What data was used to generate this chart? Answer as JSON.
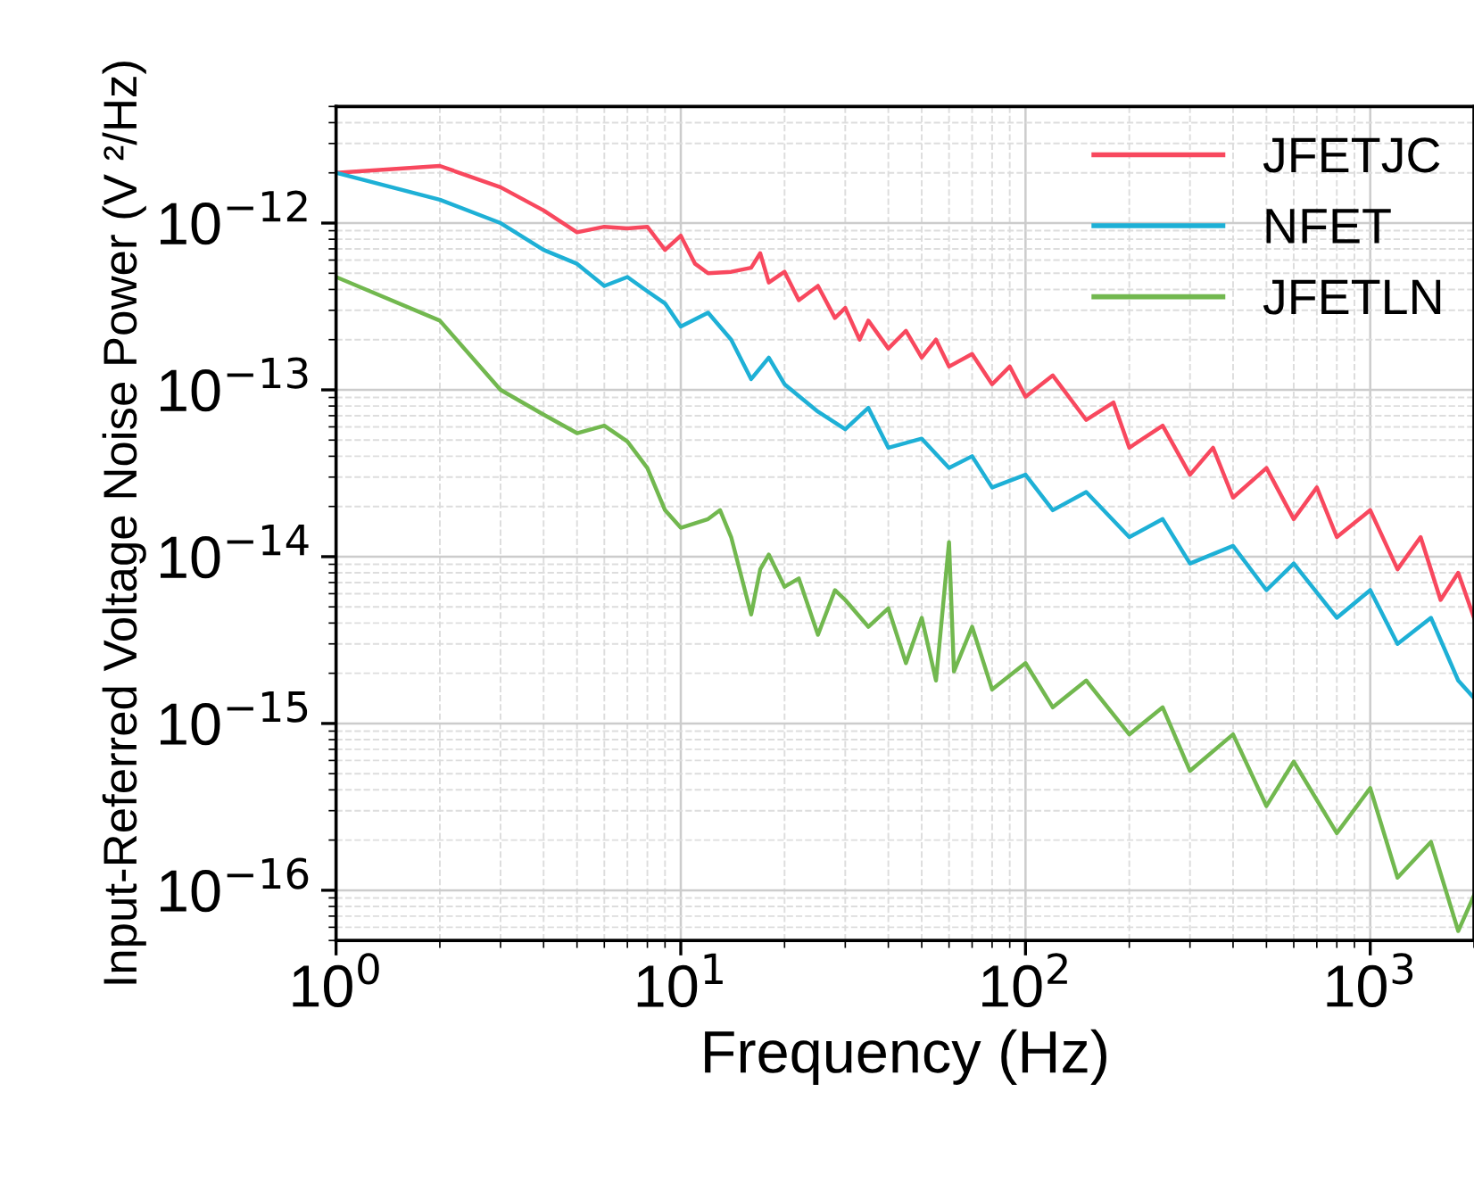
{
  "chart_data": {
    "type": "line",
    "xlabel": "Frequency (Hz)",
    "ylabel": "Input-Referred Voltage Noise Power (V ²/Hz)",
    "log": "xy",
    "xlim": [
      1,
      2000
    ],
    "ylim": [
      5e-17,
      5e-12
    ],
    "xticks": [
      {
        "value": 1,
        "label": "10$^{0}$"
      },
      {
        "value": 10,
        "label": "10$^{1}$"
      },
      {
        "value": 100,
        "label": "10$^{2}$"
      },
      {
        "value": 1000,
        "label": "10$^{3}$"
      }
    ],
    "yticks": [
      {
        "value": 1e-16,
        "label": "10$^{−16}$"
      },
      {
        "value": 1e-15,
        "label": "10$^{−15}$"
      },
      {
        "value": 1e-14,
        "label": "10$^{−14}$"
      },
      {
        "value": 1e-13,
        "label": "10$^{−13}$"
      },
      {
        "value": 1e-12,
        "label": "10$^{−12}$"
      }
    ],
    "grid": true,
    "legend": "top right",
    "line_style": "solid",
    "marker": "none",
    "series": [
      {
        "name": "JFETJC",
        "color": "#f8485e",
        "x": [
          1,
          2,
          3,
          4,
          5,
          6,
          7,
          8,
          9,
          10,
          11,
          12,
          14,
          16,
          17,
          18,
          20,
          22,
          25,
          28,
          30,
          33,
          35,
          40,
          45,
          50,
          55,
          60,
          70,
          80,
          90,
          100,
          120,
          150,
          180,
          200,
          250,
          300,
          350,
          400,
          500,
          600,
          700,
          800,
          1000,
          1200,
          1400,
          1600,
          1800,
          2000
        ],
        "values": [
          2e-12,
          2.2e-12,
          1.64e-12,
          1.19e-12,
          8.8e-13,
          9.5e-13,
          9.3e-13,
          9.5e-13,
          6.9e-13,
          8.4e-13,
          5.7e-13,
          5e-13,
          5.1e-13,
          5.4e-13,
          6.6e-13,
          4.4e-13,
          5.1e-13,
          3.45e-13,
          4.2e-13,
          2.7e-13,
          3.1e-13,
          2e-13,
          2.6e-13,
          1.77e-13,
          2.26e-13,
          1.56e-13,
          2e-13,
          1.38e-13,
          1.64e-13,
          1.08e-13,
          1.38e-13,
          9.1e-14,
          1.22e-13,
          6.6e-14,
          8.4e-14,
          4.5e-14,
          6.1e-14,
          3.1e-14,
          4.5e-14,
          2.26e-14,
          3.4e-14,
          1.68e-14,
          2.6e-14,
          1.31e-14,
          1.9e-14,
          8.4e-15,
          1.31e-14,
          5.5e-15,
          8e-15,
          4.3e-15
        ]
      },
      {
        "name": "NFET",
        "color": "#1eb0d6",
        "x": [
          1,
          2,
          3,
          4,
          5,
          6,
          7,
          8,
          9,
          10,
          12,
          14,
          16,
          18,
          20,
          25,
          30,
          35,
          40,
          50,
          60,
          70,
          80,
          100,
          120,
          150,
          200,
          250,
          300,
          400,
          500,
          600,
          800,
          1000,
          1200,
          1500,
          1800,
          2000
        ],
        "values": [
          2e-12,
          1.38e-12,
          1e-12,
          6.9e-13,
          5.7e-13,
          4.2e-13,
          4.75e-13,
          3.9e-13,
          3.3e-13,
          2.4e-13,
          2.9e-13,
          2e-13,
          1.16e-13,
          1.56e-13,
          1.08e-13,
          7.4e-14,
          5.8e-14,
          7.8e-14,
          4.5e-14,
          5.1e-14,
          3.4e-14,
          4e-14,
          2.6e-14,
          3.1e-14,
          1.9e-14,
          2.44e-14,
          1.31e-14,
          1.68e-14,
          9.1e-15,
          1.16e-14,
          6.3e-15,
          9.1e-15,
          4.3e-15,
          6.3e-15,
          3e-15,
          4.3e-15,
          1.81e-15,
          1.42e-15
        ]
      },
      {
        "name": "JFETLN",
        "color": "#72b84f",
        "x": [
          1,
          2,
          3,
          4,
          5,
          6,
          7,
          8,
          9,
          10,
          12,
          13,
          14,
          16,
          17,
          18,
          20,
          22,
          25,
          28,
          30,
          35,
          40,
          45,
          50,
          55,
          60,
          62,
          70,
          80,
          100,
          120,
          150,
          200,
          250,
          300,
          400,
          500,
          600,
          800,
          1000,
          1200,
          1500,
          1800,
          2000
        ],
        "values": [
          4.75e-13,
          2.6e-13,
          1e-13,
          7.1e-14,
          5.5e-14,
          6.1e-14,
          4.9e-14,
          3.4e-14,
          1.9e-14,
          1.49e-14,
          1.68e-14,
          1.9e-14,
          1.31e-14,
          4.5e-15,
          8.4e-15,
          1.03e-14,
          6.6e-15,
          7.4e-15,
          3.4e-15,
          6.3e-15,
          5.5e-15,
          3.8e-15,
          4.9e-15,
          2.3e-15,
          4.3e-15,
          1.81e-15,
          1.22e-14,
          2.05e-15,
          3.8e-15,
          1.6e-15,
          2.3e-15,
          1.25e-15,
          1.81e-15,
          8.6e-16,
          1.25e-15,
          5.2e-16,
          8.6e-16,
          3.2e-16,
          5.9e-16,
          2.2e-16,
          4.1e-16,
          1.19e-16,
          1.95e-16,
          5.7e-17,
          9.3e-17
        ]
      }
    ]
  }
}
